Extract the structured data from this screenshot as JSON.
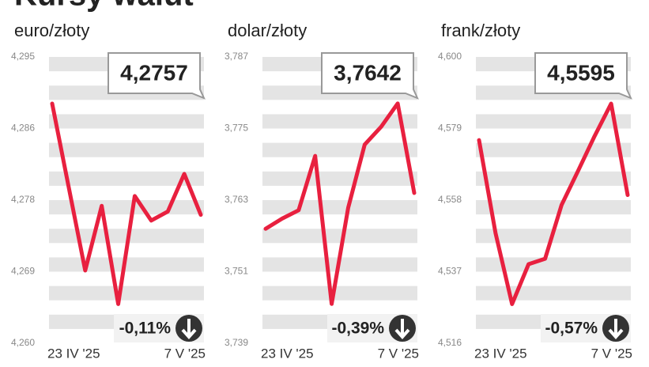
{
  "title": "Kursy walut",
  "chart_data": [
    {
      "type": "line",
      "title": "euro/złoty",
      "color": "#e8203f",
      "categories": [
        "23 IV '25",
        null,
        null,
        null,
        null,
        null,
        null,
        null,
        null,
        "7 V '25"
      ],
      "values": [
        4.2893,
        4.2791,
        4.2689,
        4.2768,
        4.2648,
        4.278,
        4.275,
        4.2761,
        4.2807,
        4.2757
      ],
      "ylim": [
        4.26,
        4.295
      ],
      "yticks": [
        {
          "value": 4.295,
          "label": "4,295"
        },
        {
          "value": 4.28625,
          "label": "4,286"
        },
        {
          "value": 4.2775,
          "label": "4,278"
        },
        {
          "value": 4.26875,
          "label": "4,269"
        },
        {
          "value": 4.26,
          "label": "4,260"
        }
      ],
      "last_value": "4,2757",
      "change": "-0,11%"
    },
    {
      "type": "line",
      "title": "dolar/złoty",
      "color": "#e8203f",
      "categories": [
        "23 IV '25",
        null,
        null,
        null,
        null,
        null,
        null,
        null,
        null,
        "7 V '25"
      ],
      "values": [
        3.7582,
        3.7599,
        3.7613,
        3.7704,
        3.7456,
        3.7617,
        3.7723,
        3.7753,
        3.7792,
        3.7642
      ],
      "ylim": [
        3.739,
        3.787
      ],
      "yticks": [
        {
          "value": 3.787,
          "label": "3,787"
        },
        {
          "value": 3.775,
          "label": "3,775"
        },
        {
          "value": 3.763,
          "label": "3,763"
        },
        {
          "value": 3.751,
          "label": "3,751"
        },
        {
          "value": 3.739,
          "label": "3,739"
        }
      ],
      "last_value": "3,7642",
      "change": "-0,39%"
    },
    {
      "type": "line",
      "title": "frank/złoty",
      "color": "#e8203f",
      "categories": [
        "23 IV '25",
        null,
        null,
        null,
        null,
        null,
        null,
        null,
        null,
        "7 V '25"
      ],
      "values": [
        4.5756,
        4.5483,
        4.5275,
        4.5392,
        4.5408,
        4.5566,
        4.5666,
        4.5768,
        4.5863,
        4.5595
      ],
      "ylim": [
        4.516,
        4.6
      ],
      "yticks": [
        {
          "value": 4.6,
          "label": "4,600"
        },
        {
          "value": 4.579,
          "label": "4,579"
        },
        {
          "value": 4.558,
          "label": "4,558"
        },
        {
          "value": 4.537,
          "label": "4,537"
        },
        {
          "value": 4.516,
          "label": "4,516"
        }
      ],
      "last_value": "4,5595",
      "change": "-0,57%"
    }
  ]
}
